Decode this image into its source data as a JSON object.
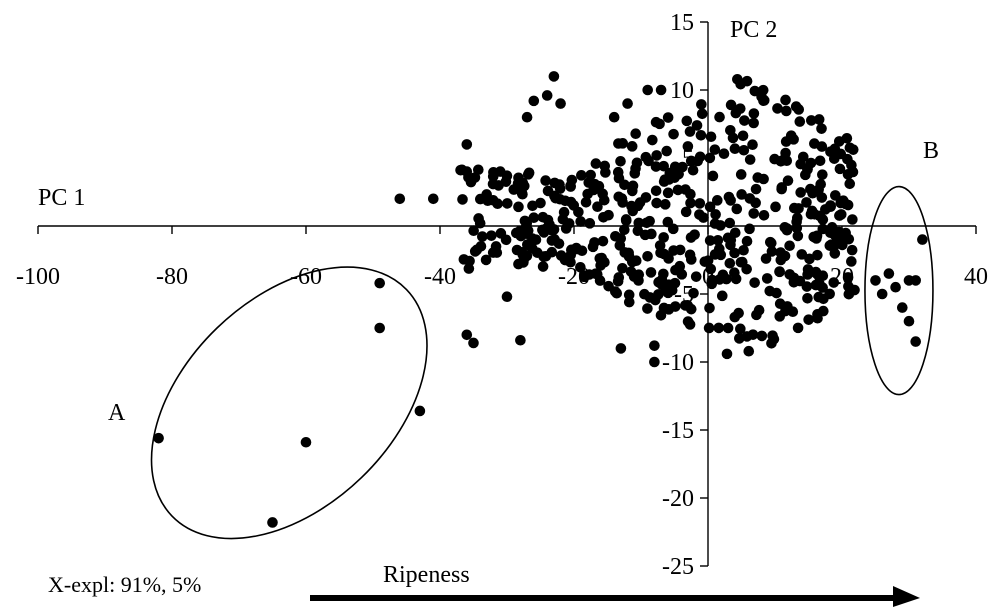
{
  "chart_data": {
    "type": "scatter",
    "x_axis_label": "PC 1",
    "y_axis_label": "PC 2",
    "xlim": [
      -100,
      40
    ],
    "ylim": [
      -25,
      15
    ],
    "x_ticks": [
      -100,
      -80,
      -60,
      -40,
      -20,
      0,
      20,
      40
    ],
    "y_ticks": [
      -25,
      -20,
      -15,
      -10,
      -5,
      0,
      5,
      10,
      15
    ],
    "x_tick_labels": [
      "-100",
      "-80",
      "-60",
      "-40",
      "-20",
      "0",
      "20",
      "40"
    ],
    "y_tick_labels": [
      "-25",
      "-20",
      "-15",
      "-10",
      "-5",
      "0",
      "5",
      "10",
      "15"
    ],
    "grid": false,
    "explained_variance_text": "X-expl: 91%, 5%",
    "arrow_label": "Ripeness",
    "group_labels": {
      "A": "A",
      "B": "B"
    },
    "group_A_points": [
      [
        -82,
        -15.6
      ],
      [
        -65,
        -21.8
      ],
      [
        -60,
        -15.9
      ],
      [
        -49,
        -4.2
      ],
      [
        -49,
        -7.5
      ],
      [
        -43,
        -13.6
      ]
    ],
    "group_B_points": [
      [
        25,
        -4
      ],
      [
        26,
        -5
      ],
      [
        27,
        -3.5
      ],
      [
        28,
        -4.5
      ],
      [
        29,
        -6
      ],
      [
        30,
        -4
      ],
      [
        30,
        -7
      ],
      [
        31,
        -8.5
      ],
      [
        31,
        -4
      ],
      [
        32,
        -1
      ]
    ],
    "main_cluster": {
      "x_range": [
        -37,
        22
      ],
      "y_range": [
        -10,
        11
      ],
      "center": [
        5,
        0.5
      ],
      "count": 520
    },
    "outliers": [
      [
        -46,
        2
      ],
      [
        -41,
        2
      ],
      [
        -36,
        6
      ],
      [
        -36,
        4
      ],
      [
        -36,
        -8
      ],
      [
        -35,
        -8.6
      ],
      [
        -31,
        4
      ],
      [
        -30,
        -5.2
      ],
      [
        -28,
        -8.4
      ],
      [
        -27,
        8
      ],
      [
        -26,
        9.2
      ],
      [
        -24,
        9.6
      ],
      [
        -23,
        11
      ],
      [
        -22,
        9
      ],
      [
        -9,
        10
      ],
      [
        -7,
        10
      ],
      [
        -12,
        9
      ],
      [
        -14,
        8
      ],
      [
        -13,
        -9
      ],
      [
        -8,
        -8.8
      ],
      [
        -8,
        -10
      ],
      [
        8,
        9.5
      ],
      [
        3,
        -7.5
      ],
      [
        4,
        -6.7
      ]
    ]
  }
}
